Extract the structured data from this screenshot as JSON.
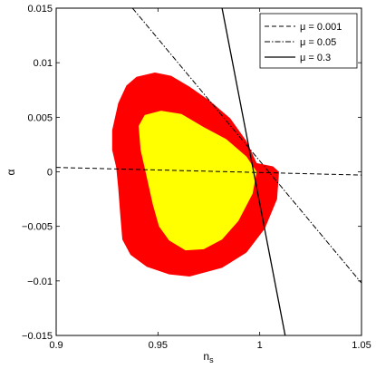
{
  "chart_data": {
    "type": "contour",
    "xlabel": "n",
    "xlabel_sub": "s",
    "ylabel": "α",
    "xlim": [
      0.9,
      1.05
    ],
    "ylim": [
      -0.015,
      0.015
    ],
    "x_ticks": [
      0.9,
      0.95,
      1.0,
      1.05
    ],
    "x_tick_labels": [
      "0.9",
      "0.95",
      "1",
      "1.05"
    ],
    "y_ticks": [
      -0.015,
      -0.01,
      -0.005,
      0,
      0.005,
      0.01,
      0.015
    ],
    "y_tick_labels": [
      "−0.015",
      "−0.01",
      "−0.005",
      "0",
      "0.005",
      "0.01",
      "0.015"
    ],
    "grid": false,
    "legend_position": "top-right",
    "regions": [
      {
        "name": "outer contour",
        "color": "#ff0000",
        "points": [
          [
            0.9275,
            0.0038
          ],
          [
            0.9305,
            0.0063
          ],
          [
            0.9345,
            0.0079
          ],
          [
            0.9395,
            0.0087
          ],
          [
            0.9485,
            0.0091
          ],
          [
            0.9565,
            0.0088
          ],
          [
            0.9655,
            0.0078
          ],
          [
            0.9755,
            0.0065
          ],
          [
            0.9855,
            0.0049
          ],
          [
            0.9935,
            0.0028
          ],
          [
            0.9985,
            0.0008
          ],
          [
            1.0065,
            0.0005
          ],
          [
            1.0095,
            0.0
          ],
          [
            1.0085,
            -0.0025
          ],
          [
            1.0025,
            -0.0052
          ],
          [
            0.9935,
            -0.0074
          ],
          [
            0.9815,
            -0.0088
          ],
          [
            0.9655,
            -0.0096
          ],
          [
            0.9555,
            -0.0094
          ],
          [
            0.9445,
            -0.0087
          ],
          [
            0.9365,
            -0.0076
          ],
          [
            0.9325,
            -0.0062
          ],
          [
            0.9315,
            -0.004
          ],
          [
            0.9305,
            -0.0015
          ],
          [
            0.9295,
            0.0004
          ],
          [
            0.9275,
            0.002
          ]
        ]
      },
      {
        "name": "inner contour",
        "color": "#ffff00",
        "points": [
          [
            0.9405,
            0.0042
          ],
          [
            0.9435,
            0.0052
          ],
          [
            0.9515,
            0.0056
          ],
          [
            0.9615,
            0.0053
          ],
          [
            0.9725,
            0.0041
          ],
          [
            0.9835,
            0.003
          ],
          [
            0.9935,
            0.0014
          ],
          [
            0.9985,
            0.0
          ],
          [
            0.9965,
            -0.002
          ],
          [
            0.9895,
            -0.0045
          ],
          [
            0.9815,
            -0.0062
          ],
          [
            0.9725,
            -0.0071
          ],
          [
            0.9635,
            -0.0072
          ],
          [
            0.9555,
            -0.0063
          ],
          [
            0.9505,
            -0.005
          ],
          [
            0.9475,
            -0.003
          ],
          [
            0.9445,
            -0.0005
          ],
          [
            0.9415,
            0.002
          ]
        ]
      }
    ],
    "series": [
      {
        "name": "μ = 0.001",
        "style": "dashed",
        "color": "#000000",
        "x": [
          0.9,
          1.05
        ],
        "y": [
          0.0004,
          -0.0003
        ]
      },
      {
        "name": "μ = 0.05",
        "style": "dashdot",
        "color": "#000000",
        "x": [
          0.9375,
          1.05
        ],
        "y": [
          0.015,
          -0.0102
        ]
      },
      {
        "name": "μ = 0.3",
        "style": "solid",
        "color": "#000000",
        "x": [
          0.9815,
          1.0125
        ],
        "y": [
          0.015,
          -0.015
        ]
      }
    ]
  }
}
